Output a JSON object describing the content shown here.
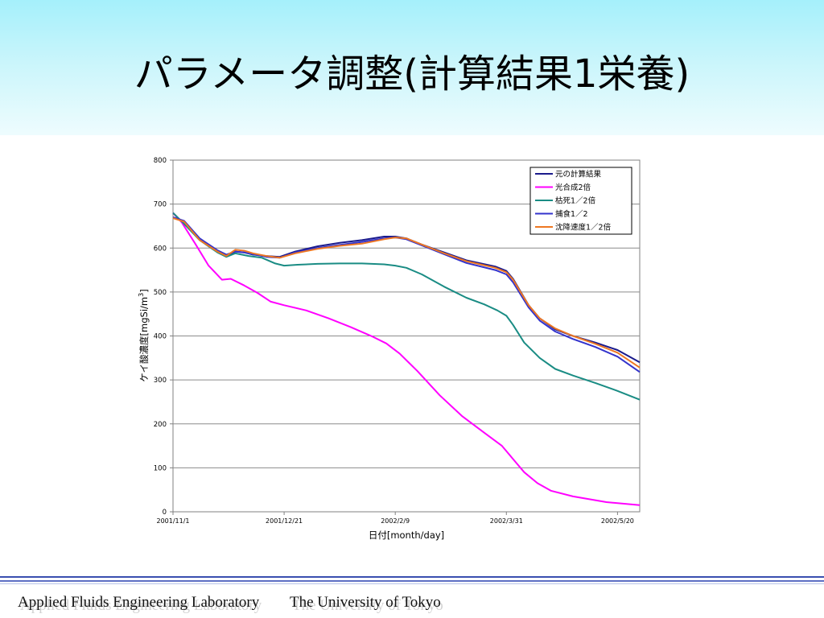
{
  "slide": {
    "title": "パラメータ調整(計算結果1栄養)"
  },
  "footer": {
    "lab": "Applied Fluids Engineering Laboratory",
    "university": "The University of Tokyo"
  },
  "chart_data": {
    "type": "line",
    "title": "",
    "xlabel": "日付[month/day]",
    "ylabel": "ケイ酸濃度[mgSi/m",
    "ylabel_sup": "3",
    "ylabel_end": "]",
    "xlim": [
      0,
      210
    ],
    "ylim": [
      0,
      800
    ],
    "yticks": [
      0,
      100,
      200,
      300,
      400,
      500,
      600,
      700,
      800
    ],
    "xticks": [
      {
        "label": "2001/11/1",
        "x": 0
      },
      {
        "label": "2001/12/21",
        "x": 50
      },
      {
        "label": "2002/2/9",
        "x": 100
      },
      {
        "label": "2002/3/31",
        "x": 150
      },
      {
        "label": "2002/5/20",
        "x": 200
      }
    ],
    "grid": "horizontal",
    "legend": "top-right",
    "series": [
      {
        "name": "元の計算結果",
        "color": "#1a1a8c",
        "points": [
          [
            0,
            680
          ],
          [
            5,
            655
          ],
          [
            12,
            620
          ],
          [
            20,
            592
          ],
          [
            25,
            582
          ],
          [
            28,
            592
          ],
          [
            32,
            590
          ],
          [
            36,
            585
          ],
          [
            42,
            582
          ],
          [
            48,
            580
          ],
          [
            55,
            592
          ],
          [
            65,
            604
          ],
          [
            75,
            612
          ],
          [
            85,
            618
          ],
          [
            95,
            626
          ],
          [
            100,
            626
          ],
          [
            105,
            622
          ],
          [
            112,
            608
          ],
          [
            122,
            590
          ],
          [
            132,
            572
          ],
          [
            145,
            558
          ],
          [
            150,
            548
          ],
          [
            153,
            530
          ],
          [
            160,
            470
          ],
          [
            165,
            440
          ],
          [
            172,
            415
          ],
          [
            180,
            400
          ],
          [
            190,
            385
          ],
          [
            200,
            368
          ],
          [
            210,
            340
          ]
        ]
      },
      {
        "name": "光合成2倍",
        "color": "#ff00ff",
        "points": [
          [
            0,
            680
          ],
          [
            4,
            658
          ],
          [
            10,
            610
          ],
          [
            16,
            560
          ],
          [
            22,
            528
          ],
          [
            26,
            530
          ],
          [
            32,
            515
          ],
          [
            38,
            498
          ],
          [
            44,
            478
          ],
          [
            50,
            470
          ],
          [
            60,
            458
          ],
          [
            70,
            440
          ],
          [
            80,
            420
          ],
          [
            90,
            398
          ],
          [
            96,
            383
          ],
          [
            102,
            360
          ],
          [
            110,
            320
          ],
          [
            120,
            265
          ],
          [
            130,
            218
          ],
          [
            140,
            180
          ],
          [
            148,
            150
          ],
          [
            153,
            120
          ],
          [
            158,
            90
          ],
          [
            164,
            65
          ],
          [
            170,
            48
          ],
          [
            180,
            35
          ],
          [
            195,
            22
          ],
          [
            210,
            15
          ]
        ]
      },
      {
        "name": "枯死1／2倍",
        "color": "#1a8c84",
        "points": [
          [
            0,
            680
          ],
          [
            5,
            655
          ],
          [
            12,
            618
          ],
          [
            20,
            590
          ],
          [
            24,
            580
          ],
          [
            28,
            588
          ],
          [
            34,
            582
          ],
          [
            40,
            578
          ],
          [
            46,
            565
          ],
          [
            50,
            560
          ],
          [
            56,
            562
          ],
          [
            65,
            564
          ],
          [
            75,
            565
          ],
          [
            85,
            565
          ],
          [
            95,
            563
          ],
          [
            100,
            560
          ],
          [
            105,
            555
          ],
          [
            112,
            540
          ],
          [
            122,
            512
          ],
          [
            132,
            487
          ],
          [
            140,
            472
          ],
          [
            146,
            458
          ],
          [
            150,
            446
          ],
          [
            153,
            425
          ],
          [
            158,
            385
          ],
          [
            165,
            350
          ],
          [
            172,
            325
          ],
          [
            180,
            310
          ],
          [
            190,
            293
          ],
          [
            200,
            275
          ],
          [
            210,
            255
          ]
        ]
      },
      {
        "name": "捕食1／2",
        "color": "#3333cc",
        "points": [
          [
            0,
            670
          ],
          [
            5,
            662
          ],
          [
            12,
            622
          ],
          [
            20,
            595
          ],
          [
            24,
            585
          ],
          [
            28,
            592
          ],
          [
            32,
            590
          ],
          [
            36,
            586
          ],
          [
            42,
            580
          ],
          [
            48,
            578
          ],
          [
            55,
            590
          ],
          [
            65,
            600
          ],
          [
            75,
            607
          ],
          [
            85,
            614
          ],
          [
            95,
            622
          ],
          [
            100,
            624
          ],
          [
            105,
            620
          ],
          [
            112,
            606
          ],
          [
            122,
            586
          ],
          [
            132,
            566
          ],
          [
            145,
            550
          ],
          [
            150,
            540
          ],
          [
            153,
            522
          ],
          [
            160,
            465
          ],
          [
            165,
            435
          ],
          [
            172,
            410
          ],
          [
            180,
            393
          ],
          [
            190,
            375
          ],
          [
            200,
            353
          ],
          [
            210,
            318
          ]
        ]
      },
      {
        "name": "沈降速度1／2倍",
        "color": "#ee7722",
        "points": [
          [
            0,
            668
          ],
          [
            5,
            660
          ],
          [
            12,
            618
          ],
          [
            20,
            592
          ],
          [
            24,
            582
          ],
          [
            28,
            596
          ],
          [
            32,
            594
          ],
          [
            36,
            588
          ],
          [
            42,
            582
          ],
          [
            48,
            578
          ],
          [
            55,
            588
          ],
          [
            65,
            598
          ],
          [
            75,
            605
          ],
          [
            85,
            610
          ],
          [
            95,
            620
          ],
          [
            100,
            624
          ],
          [
            105,
            622
          ],
          [
            112,
            608
          ],
          [
            122,
            588
          ],
          [
            132,
            570
          ],
          [
            145,
            555
          ],
          [
            150,
            545
          ],
          [
            153,
            528
          ],
          [
            160,
            470
          ],
          [
            165,
            440
          ],
          [
            172,
            417
          ],
          [
            180,
            400
          ],
          [
            190,
            382
          ],
          [
            200,
            362
          ],
          [
            210,
            328
          ]
        ]
      }
    ]
  }
}
